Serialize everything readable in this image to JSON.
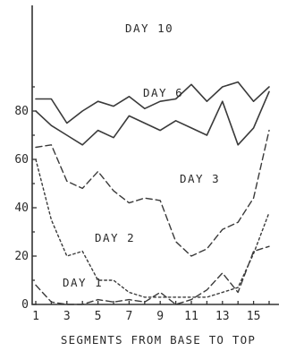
{
  "chart_data": {
    "type": "line",
    "title": "",
    "xlabel": "SEGMENTS FROM BASE TO TOP",
    "ylabel": "",
    "xlim": [
      1,
      16
    ],
    "ylim": [
      0,
      90
    ],
    "x_ticks": [
      1,
      3,
      5,
      7,
      9,
      11,
      13,
      15
    ],
    "y_ticks": [
      0,
      20,
      40,
      60,
      80
    ],
    "grid": false,
    "legend": "inline labels",
    "x": [
      1,
      2,
      3,
      4,
      5,
      6,
      7,
      8,
      9,
      10,
      11,
      12,
      13,
      14,
      15,
      16
    ],
    "series": [
      {
        "name": "DAY 10",
        "style": "solid",
        "values": [
          85,
          85,
          75,
          80,
          84,
          82,
          86,
          81,
          84,
          85,
          91,
          84,
          90,
          92,
          84,
          90
        ]
      },
      {
        "name": "DAY 6",
        "style": "solid",
        "values": [
          80,
          74,
          70,
          66,
          72,
          69,
          78,
          75,
          72,
          76,
          73,
          70,
          84,
          66,
          73,
          88
        ]
      },
      {
        "name": "DAY 3",
        "style": "dashed",
        "values": [
          65,
          66,
          51,
          48,
          55,
          47,
          42,
          44,
          43,
          26,
          20,
          23,
          31,
          34,
          44,
          72
        ]
      },
      {
        "name": "DAY 2",
        "style": "dotted",
        "values": [
          60,
          35,
          20,
          22,
          10,
          10,
          5,
          3,
          3,
          3,
          3,
          3,
          5,
          7,
          21,
          38
        ]
      },
      {
        "name": "DAY 1",
        "style": "dashed",
        "values": [
          8,
          1,
          0,
          0,
          2,
          1,
          2,
          1,
          5,
          0,
          2,
          6,
          13,
          5,
          22,
          24
        ]
      }
    ]
  }
}
